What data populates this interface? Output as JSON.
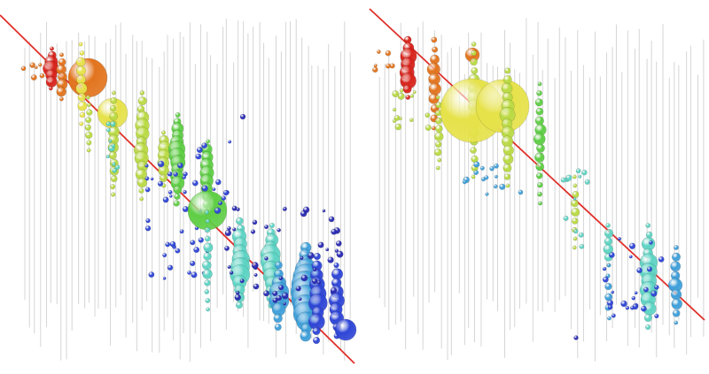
{
  "panels": [
    {
      "name": "left-visualization"
    },
    {
      "name": "right-visualization"
    }
  ],
  "colors": {
    "background": "#ffffff",
    "guide_lines": "#c8c8c8",
    "diagonal": "#e0302a",
    "red": "#d8241c",
    "orange": "#e2741e",
    "yellow": "#e6e24a",
    "yellow_green": "#bada45",
    "green": "#5fce45",
    "cyan": "#5fd4c4",
    "sky": "#3f9fd9",
    "blue": "#2f46d6",
    "dark_blue": "#2a2bb3"
  }
}
